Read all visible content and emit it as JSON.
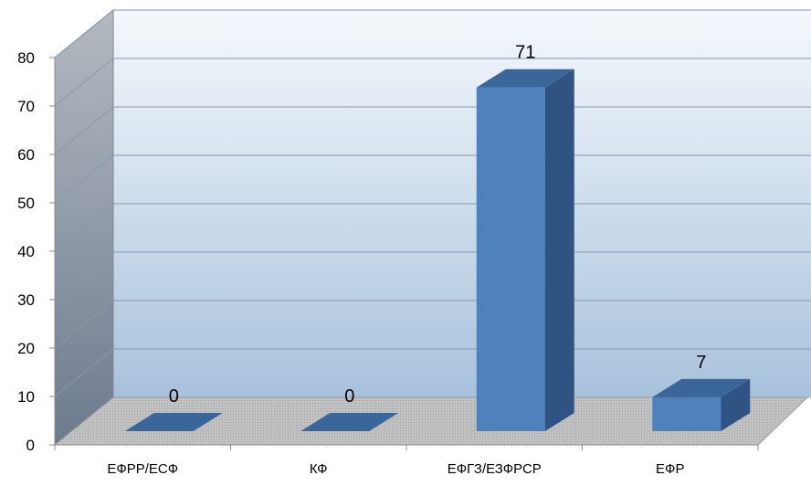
{
  "chart_data": {
    "type": "bar",
    "categories": [
      "ЕФРР/ЕСФ",
      "КФ",
      "ЕФГЗ/ЕЗФРСР",
      "ЕФР"
    ],
    "values": [
      0,
      0,
      71,
      7
    ],
    "data_labels": [
      "0",
      "0",
      "71",
      "7"
    ],
    "y_ticks": [
      "0",
      "10",
      "20",
      "30",
      "40",
      "50",
      "60",
      "70",
      "80"
    ],
    "ylim": [
      0,
      80
    ],
    "title": "",
    "xlabel": "",
    "ylabel": "",
    "grid": true,
    "legend": "none",
    "style": "3d-column",
    "colors": {
      "bar_front": "#4f81bd",
      "bar_top": "#3b6699",
      "bar_side": "#2f5383",
      "wall_top": "#f4f8fc",
      "wall_bottom": "#a8c2dc",
      "side_wall_top": "#b4b9c0",
      "side_wall_bottom": "#6d7b8e",
      "floor": "#b7b7b7",
      "gridline": "#8899aa"
    }
  }
}
